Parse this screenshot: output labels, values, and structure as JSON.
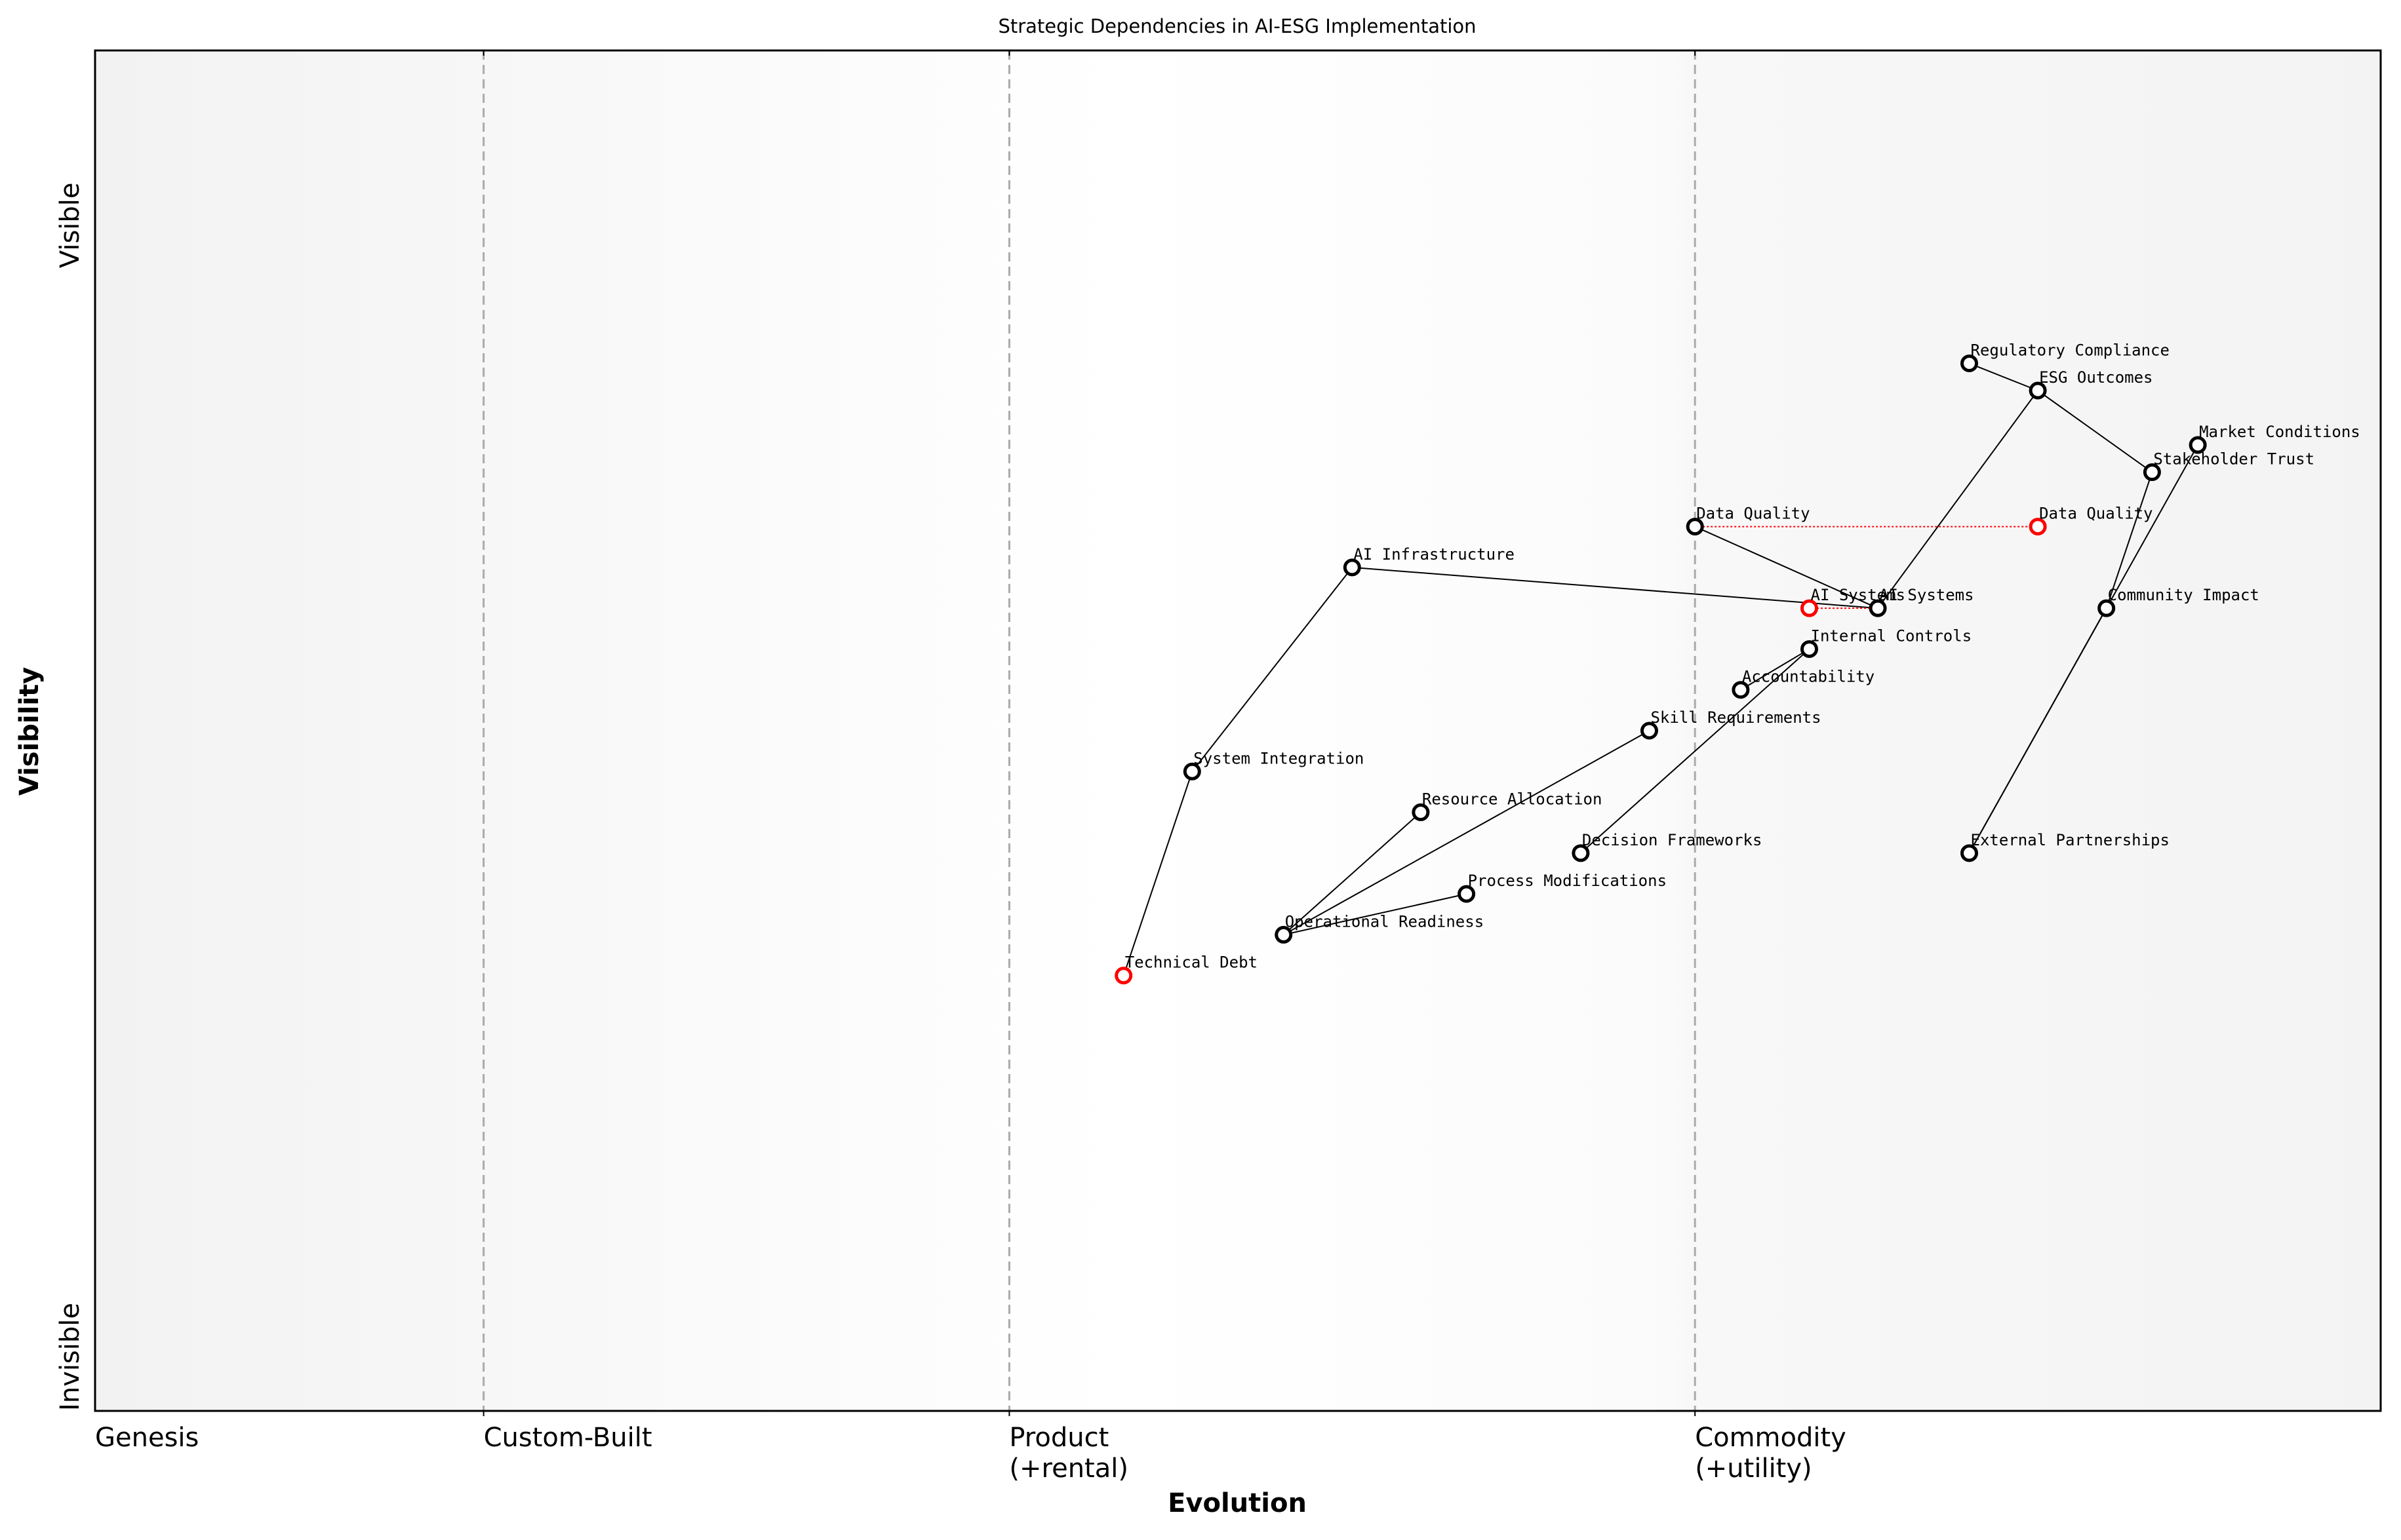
{
  "chart_data": {
    "type": "wardley",
    "title": "Strategic Dependencies in AI-ESG Implementation",
    "xlabel": "Evolution",
    "ylabel": "Visibility",
    "xlim": [
      0,
      1
    ],
    "ylim": [
      0,
      1
    ],
    "xticks": [
      {
        "value": 0,
        "label": "Genesis"
      },
      {
        "value": 0.17,
        "label": "Custom-Built"
      },
      {
        "value": 0.4,
        "label": "Product\n(+rental)"
      },
      {
        "value": 0.7,
        "label": "Commodity\n(+utility)"
      }
    ],
    "yticks": [
      {
        "value": 0,
        "label": "Invisible"
      },
      {
        "value": 0.84,
        "label": "Visible"
      }
    ],
    "components": [
      {
        "name": "Regulatory Compliance",
        "x": 0.82,
        "y": 0.77,
        "color": "black"
      },
      {
        "name": "ESG Outcomes",
        "x": 0.85,
        "y": 0.75,
        "color": "black"
      },
      {
        "name": "Market Conditions",
        "x": 0.92,
        "y": 0.71,
        "color": "black"
      },
      {
        "name": "Stakeholder Trust",
        "x": 0.9,
        "y": 0.69,
        "color": "black"
      },
      {
        "name": "Data Quality",
        "x": 0.7,
        "y": 0.65,
        "color": "black"
      },
      {
        "name": "AI Infrastructure",
        "x": 0.55,
        "y": 0.62,
        "color": "black"
      },
      {
        "name": "AI Systems",
        "x": 0.78,
        "y": 0.59,
        "color": "black"
      },
      {
        "name": "Community Impact",
        "x": 0.88,
        "y": 0.59,
        "color": "black"
      },
      {
        "name": "Internal Controls",
        "x": 0.75,
        "y": 0.56,
        "color": "black"
      },
      {
        "name": "Accountability",
        "x": 0.72,
        "y": 0.53,
        "color": "black"
      },
      {
        "name": "Skill Requirements",
        "x": 0.68,
        "y": 0.5,
        "color": "black"
      },
      {
        "name": "System Integration",
        "x": 0.48,
        "y": 0.47,
        "color": "black"
      },
      {
        "name": "Resource Allocation",
        "x": 0.58,
        "y": 0.44,
        "color": "black"
      },
      {
        "name": "Decision Frameworks",
        "x": 0.65,
        "y": 0.41,
        "color": "black"
      },
      {
        "name": "External Partnerships",
        "x": 0.82,
        "y": 0.41,
        "color": "black"
      },
      {
        "name": "Process Modifications",
        "x": 0.6,
        "y": 0.38,
        "color": "black"
      },
      {
        "name": "Operational Readiness",
        "x": 0.52,
        "y": 0.35,
        "color": "black"
      },
      {
        "name": "Technical Debt",
        "x": 0.45,
        "y": 0.32,
        "color": "red"
      }
    ],
    "links": [
      [
        "Regulatory Compliance",
        "ESG Outcomes"
      ],
      [
        "ESG Outcomes",
        "Stakeholder Trust"
      ],
      [
        "ESG Outcomes",
        "AI Systems"
      ],
      [
        "Stakeholder Trust",
        "Community Impact"
      ],
      [
        "Market Conditions",
        "External Partnerships"
      ],
      [
        "Community Impact",
        "External Partnerships"
      ],
      [
        "Data Quality",
        "AI Systems"
      ],
      [
        "AI Infrastructure",
        "AI Systems"
      ],
      [
        "AI Infrastructure",
        "System Integration"
      ],
      [
        "System Integration",
        "Technical Debt"
      ],
      [
        "Internal Controls",
        "Accountability"
      ],
      [
        "Internal Controls",
        "Decision Frameworks"
      ],
      [
        "Skill Requirements",
        "Operational Readiness"
      ],
      [
        "Resource Allocation",
        "Operational Readiness"
      ],
      [
        "Process Modifications",
        "Operational Readiness"
      ]
    ],
    "evolve": [
      {
        "name": "Data Quality",
        "to": 0.85,
        "color": "red"
      },
      {
        "name": "AI Systems",
        "to": 0.75,
        "color": "red"
      }
    ]
  }
}
